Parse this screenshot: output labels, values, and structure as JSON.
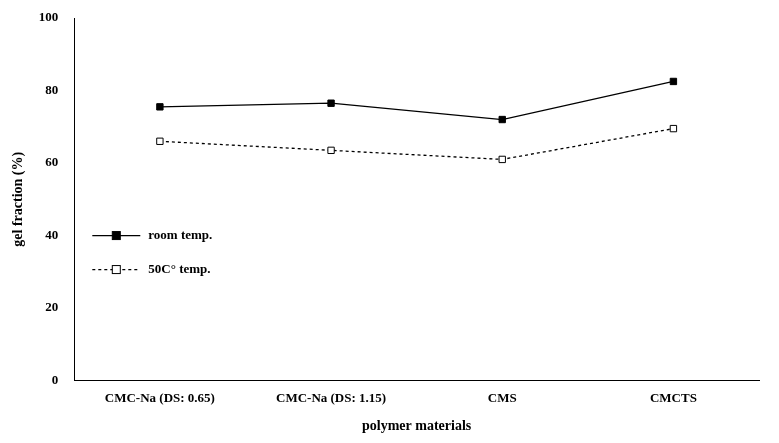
{
  "chart_data": {
    "type": "line",
    "x_label": "polymer materials",
    "y_label": "gel fraction (%)",
    "categories": [
      "CMC-Na (DS: 0.65)",
      "CMC-Na (DS: 1.15)",
      "CMS",
      "CMCTS"
    ],
    "series": [
      {
        "name": "room temp.",
        "color": "#000000",
        "marker": "filled_square",
        "line_style": "solid",
        "values": [
          75.5,
          76.5,
          72,
          82.5
        ]
      },
      {
        "name": "50C° temp.",
        "color": "#000000",
        "marker": "open_square",
        "line_style": "dotted",
        "values": [
          66,
          63.5,
          61,
          69.5
        ]
      }
    ],
    "ylim": [
      0,
      100
    ],
    "yticks": [
      0,
      20,
      40,
      60,
      80,
      100
    ],
    "grid": false,
    "legend": "left"
  }
}
